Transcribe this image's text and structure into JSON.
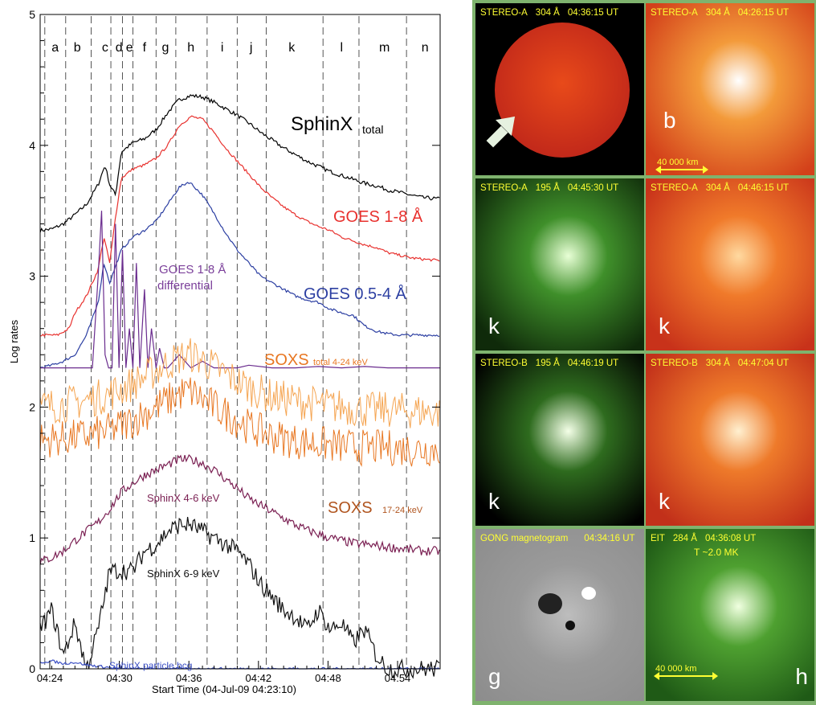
{
  "chart_data": {
    "type": "line",
    "xlabel": "Start Time (04-Jul-09 04:23:10)",
    "ylabel": "Log rates",
    "xlim": [
      0,
      34.5
    ],
    "ylim": [
      0,
      5
    ],
    "x_ticks": [
      {
        "t": 0.83,
        "label": "04:24"
      },
      {
        "t": 6.83,
        "label": "04:30"
      },
      {
        "t": 12.83,
        "label": "04:36"
      },
      {
        "t": 18.83,
        "label": "04:42"
      },
      {
        "t": 24.83,
        "label": "04:48"
      },
      {
        "t": 30.83,
        "label": "04:54"
      }
    ],
    "y_ticks": [
      0,
      1,
      2,
      3,
      4,
      5
    ],
    "intervals": [
      {
        "label": "a",
        "t": 1.3
      },
      {
        "label": "b",
        "t": 3.2
      },
      {
        "label": "c",
        "t": 5.6
      },
      {
        "label": "d",
        "t": 6.8
      },
      {
        "label": "e",
        "t": 7.7
      },
      {
        "label": "f",
        "t": 9.0
      },
      {
        "label": "g",
        "t": 10.8
      },
      {
        "label": "h",
        "t": 13.0
      },
      {
        "label": "i",
        "t": 15.7
      },
      {
        "label": "j",
        "t": 18.2
      },
      {
        "label": "k",
        "t": 21.7
      },
      {
        "label": "l",
        "t": 26.0
      },
      {
        "label": "m",
        "t": 29.7
      },
      {
        "label": "n",
        "t": 33.2
      }
    ],
    "boundaries": [
      0.4,
      2.2,
      4.4,
      6.1,
      7.1,
      8.0,
      10.0,
      11.7,
      14.4,
      17.0,
      19.5,
      24.4,
      27.5,
      31.6
    ],
    "series": [
      {
        "name": "SphinX",
        "sub": "total",
        "color": "#000000",
        "x": [
          0,
          1,
          2,
          3,
          4,
          5,
          5.6,
          6,
          6.5,
          7,
          8,
          9,
          10,
          11,
          12,
          13,
          14,
          15,
          16,
          17,
          18,
          19,
          20,
          21,
          22,
          23,
          24,
          25,
          26,
          27,
          28,
          29,
          30,
          31,
          32,
          33,
          34.5
        ],
        "y": [
          3.35,
          3.36,
          3.4,
          3.47,
          3.55,
          3.7,
          3.85,
          3.7,
          3.62,
          3.95,
          4.02,
          4.05,
          4.12,
          4.25,
          4.35,
          4.38,
          4.37,
          4.33,
          4.28,
          4.23,
          4.17,
          4.1,
          4.04,
          3.98,
          3.93,
          3.88,
          3.84,
          3.8,
          3.77,
          3.74,
          3.71,
          3.69,
          3.66,
          3.64,
          3.62,
          3.6,
          3.59
        ]
      },
      {
        "name": "GOES 1-8 Å",
        "color": "#e8312e",
        "x": [
          0,
          1.5,
          2.5,
          3,
          4,
          5,
          5.5,
          6,
          6.5,
          7,
          8,
          9,
          10,
          11,
          12,
          13,
          14,
          15,
          16,
          17,
          18,
          19,
          20,
          21,
          22,
          23,
          24,
          25,
          26,
          27,
          28,
          29,
          30,
          31,
          32,
          33,
          34.5
        ],
        "y": [
          2.55,
          2.55,
          2.6,
          2.72,
          2.85,
          3.05,
          3.3,
          3.1,
          3.45,
          3.75,
          3.82,
          3.85,
          3.9,
          4.0,
          4.15,
          4.22,
          4.2,
          4.1,
          3.98,
          3.88,
          3.78,
          3.68,
          3.6,
          3.53,
          3.47,
          3.42,
          3.38,
          3.35,
          3.3,
          3.27,
          3.24,
          3.22,
          3.18,
          3.16,
          3.14,
          3.13,
          3.12
        ]
      },
      {
        "name": "GOES 0.5-4 Å",
        "color": "#2c3fa2",
        "x": [
          0,
          1,
          2,
          3,
          4,
          5,
          5.5,
          6,
          7,
          8,
          9,
          10,
          11,
          12,
          12.8,
          13,
          14,
          15,
          16,
          17,
          18,
          19,
          20,
          21,
          22,
          23,
          24,
          25,
          26,
          27,
          28,
          29,
          30,
          31,
          32,
          33,
          34.5
        ],
        "y": [
          2.3,
          2.32,
          2.35,
          2.4,
          2.55,
          2.8,
          3.1,
          2.95,
          3.2,
          3.3,
          3.35,
          3.42,
          3.55,
          3.68,
          3.72,
          3.71,
          3.62,
          3.48,
          3.33,
          3.2,
          3.1,
          3.0,
          2.95,
          2.9,
          2.85,
          2.82,
          2.8,
          2.75,
          2.72,
          2.7,
          2.62,
          2.58,
          2.56,
          2.55,
          2.55,
          2.55,
          2.55
        ]
      },
      {
        "name": "GOES 1-8 Å differential",
        "color": "#6a2c8e",
        "x": [
          0,
          4.5,
          5,
          5.3,
          5.6,
          5.9,
          6.2,
          6.5,
          6.8,
          7.1,
          7.4,
          7.7,
          8,
          8.3,
          8.6,
          9,
          9.3,
          9.6,
          10,
          10.3,
          10.7,
          11,
          12,
          13,
          14,
          15,
          16,
          17,
          18,
          20,
          22,
          24,
          26,
          28,
          30,
          32,
          34.5
        ],
        "y": [
          2.3,
          2.3,
          3.0,
          3.5,
          2.4,
          2.3,
          2.3,
          3.4,
          2.3,
          3.2,
          2.3,
          2.6,
          2.3,
          3.1,
          2.3,
          2.9,
          2.3,
          2.6,
          2.3,
          2.45,
          2.3,
          2.3,
          2.4,
          2.3,
          2.35,
          2.3,
          2.3,
          2.3,
          2.32,
          2.3,
          2.3,
          2.31,
          2.3,
          2.31,
          2.3,
          2.3,
          2.3
        ]
      },
      {
        "name": "SOXS",
        "sub": "total 4-24 keV",
        "color": "#f5a552",
        "x": [
          0,
          2,
          4,
          6,
          8,
          10,
          12,
          13,
          14,
          16,
          18,
          20,
          22,
          24,
          26,
          28,
          30,
          32,
          34.5
        ],
        "y": [
          2.0,
          2.02,
          2.05,
          2.1,
          2.18,
          2.28,
          2.38,
          2.4,
          2.36,
          2.25,
          2.15,
          2.08,
          2.05,
          2.02,
          2.0,
          1.98,
          1.98,
          1.97,
          1.96
        ]
      },
      {
        "name": "SOXS",
        "sub": "17-24 keV",
        "color": "#e87722",
        "x": [
          0,
          2,
          4,
          6,
          8,
          10,
          12,
          13,
          14,
          16,
          18,
          20,
          22,
          24,
          26,
          28,
          30,
          32,
          34.5
        ],
        "y": [
          1.75,
          1.76,
          1.78,
          1.82,
          1.9,
          2.0,
          2.1,
          2.12,
          2.06,
          1.95,
          1.85,
          1.78,
          1.74,
          1.72,
          1.7,
          1.69,
          1.69,
          1.68,
          1.68
        ]
      },
      {
        "name": "SphinX 4-6 keV",
        "color": "#7a1f52",
        "x": [
          0,
          1,
          2,
          3,
          4,
          5,
          6,
          7,
          8,
          9,
          10,
          11,
          12,
          13,
          14,
          15,
          16,
          17,
          18,
          19,
          20,
          21,
          22,
          23,
          24,
          25,
          26,
          27,
          28,
          29,
          30,
          31,
          32,
          33,
          34.5
        ],
        "y": [
          0.82,
          0.85,
          0.9,
          0.98,
          1.05,
          1.12,
          1.22,
          1.35,
          1.42,
          1.48,
          1.52,
          1.56,
          1.6,
          1.6,
          1.57,
          1.52,
          1.45,
          1.38,
          1.3,
          1.25,
          1.2,
          1.15,
          1.1,
          1.06,
          1.03,
          1.0,
          0.98,
          0.96,
          0.95,
          0.94,
          0.93,
          0.92,
          0.91,
          0.9,
          0.9
        ]
      },
      {
        "name": "SphinX 6-9 keV",
        "color": "#111111",
        "x": [
          0,
          1,
          2,
          3,
          4,
          5,
          6,
          7,
          8,
          9,
          10,
          11,
          12,
          13,
          14,
          15,
          16,
          17,
          18,
          19,
          20,
          21,
          22,
          23,
          24,
          25,
          26,
          27,
          28,
          29,
          30,
          31,
          32,
          33,
          34.5
        ],
        "y": [
          0.3,
          0.45,
          0.1,
          0.35,
          0.0,
          0.3,
          0.75,
          0.75,
          0.75,
          0.9,
          0.95,
          1.05,
          1.1,
          1.1,
          1.05,
          1.0,
          0.95,
          0.9,
          0.8,
          0.65,
          0.55,
          0.45,
          0.4,
          0.3,
          0.45,
          0.3,
          0.35,
          0.2,
          0.3,
          0.1,
          0.0,
          0.0,
          0.0,
          0.0,
          0.0
        ]
      },
      {
        "name": "SphinX particle bcg",
        "color": "#3b4fc4",
        "x": [
          0,
          1,
          2,
          3,
          4,
          5,
          6,
          7,
          8,
          9,
          10,
          34.5
        ],
        "y": [
          0.05,
          0.06,
          0.04,
          0.05,
          0.03,
          0.02,
          0.01,
          0.0,
          0.0,
          0.0,
          0.0,
          0.0
        ]
      }
    ],
    "labels": {
      "sphinx_total": "SphinX",
      "sphinx_total_sub": "total",
      "goes18": "GOES 1-8 Å",
      "goes054": "GOES 0.5-4 Å",
      "goes_diff_1": "GOES 1-8 Å",
      "goes_diff_2": "differential",
      "soxs_total": "SOXS",
      "soxs_total_sub": "total  4-24 keV",
      "soxs_17": "SOXS",
      "soxs_17_sub": "17-24 keV",
      "sphinx_46": "SphinX  4-6 keV",
      "sphinx_69": "SphinX  6-9 keV",
      "sphinx_bcg": "SphinX  particle bcg"
    }
  },
  "panels": [
    {
      "id": "p1",
      "instrument": "STEREO-A",
      "wavelength": "304 Å",
      "time": "04:36:15 UT",
      "letter": "",
      "colors": [
        "#000000",
        "#c1281a",
        "#e84a1a"
      ]
    },
    {
      "id": "p2",
      "instrument": "STEREO-A",
      "wavelength": "304 Å",
      "time": "04:26:15 UT",
      "letter": "b",
      "scale": "40 000 km",
      "colors": [
        "#d3401a",
        "#f39a3a",
        "#ffffff"
      ]
    },
    {
      "id": "p3",
      "instrument": "STEREO-A",
      "wavelength": "195 Å",
      "time": "04:45:30 UT",
      "letter": "k",
      "colors": [
        "#0f2a0a",
        "#3f8f2a",
        "#e8ffd6"
      ]
    },
    {
      "id": "p4",
      "instrument": "STEREO-A",
      "wavelength": "304 Å",
      "time": "04:46:15 UT",
      "letter": "k",
      "colors": [
        "#c8321a",
        "#f07a2a",
        "#ffd9a0"
      ]
    },
    {
      "id": "p5",
      "instrument": "STEREO-B",
      "wavelength": "195 Å",
      "time": "04:46:19 UT",
      "letter": "k",
      "colors": [
        "#000000",
        "#2e6b1e",
        "#f4ffe8"
      ]
    },
    {
      "id": "p6",
      "instrument": "STEREO-B",
      "wavelength": "304 Å",
      "time": "04:47:04 UT",
      "letter": "k",
      "colors": [
        "#c2301a",
        "#ee7a2a",
        "#fff0d0"
      ]
    },
    {
      "id": "p7",
      "instrument": "GONG magnetogram",
      "wavelength": "",
      "time": "04:34:16 UT",
      "letter": "g",
      "colors": [
        "#8c8c8c",
        "#9a9a9a",
        "#ffffff"
      ]
    },
    {
      "id": "p8",
      "instrument": "EIT",
      "wavelength": "284 Å",
      "time": "04:36:08 UT",
      "letter": "h",
      "sub": "T ~2.0 MK",
      "scale": "40 000 km",
      "colors": [
        "#1f5a16",
        "#4ea030",
        "#f0ffe0"
      ]
    }
  ]
}
